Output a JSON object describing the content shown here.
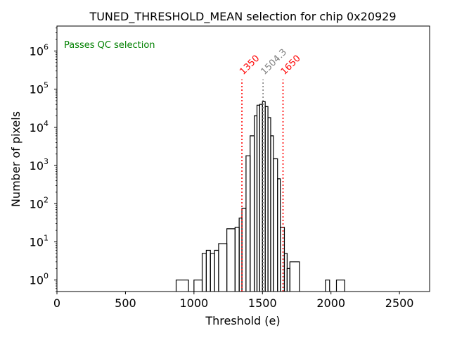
{
  "chart_data": {
    "type": "histogram",
    "title": "TUNED_THRESHOLD_MEAN selection for chip 0x20929",
    "xlabel": "Threshold (e)",
    "ylabel": "Number of pixels",
    "xlim": [
      0,
      2720
    ],
    "ylim_log": [
      0.5,
      4500000
    ],
    "yscale": "log",
    "x_ticks": [
      0,
      500,
      1000,
      1500,
      2000,
      2500
    ],
    "x_tick_labels": [
      "0",
      "500",
      "1000",
      "1500",
      "2000",
      "2500"
    ],
    "y_ticks": [
      1,
      10,
      100,
      1000,
      10000,
      100000,
      1000000
    ],
    "y_tick_base": "10",
    "y_tick_exponents": [
      "0",
      "1",
      "2",
      "3",
      "4",
      "5",
      "6"
    ],
    "bins": [
      {
        "x0": 870,
        "x1": 960,
        "count": 1
      },
      {
        "x0": 1000,
        "x1": 1060,
        "count": 1
      },
      {
        "x0": 1060,
        "x1": 1090,
        "count": 5
      },
      {
        "x0": 1090,
        "x1": 1120,
        "count": 6
      },
      {
        "x0": 1120,
        "x1": 1150,
        "count": 5
      },
      {
        "x0": 1150,
        "x1": 1180,
        "count": 6
      },
      {
        "x0": 1180,
        "x1": 1240,
        "count": 9
      },
      {
        "x0": 1240,
        "x1": 1300,
        "count": 22
      },
      {
        "x0": 1300,
        "x1": 1330,
        "count": 24
      },
      {
        "x0": 1330,
        "x1": 1350,
        "count": 42
      },
      {
        "x0": 1350,
        "x1": 1380,
        "count": 75
      },
      {
        "x0": 1380,
        "x1": 1410,
        "count": 1800
      },
      {
        "x0": 1410,
        "x1": 1440,
        "count": 6000
      },
      {
        "x0": 1440,
        "x1": 1460,
        "count": 20000
      },
      {
        "x0": 1460,
        "x1": 1480,
        "count": 38000
      },
      {
        "x0": 1480,
        "x1": 1500,
        "count": 40000
      },
      {
        "x0": 1500,
        "x1": 1520,
        "count": 47000
      },
      {
        "x0": 1520,
        "x1": 1540,
        "count": 35000
      },
      {
        "x0": 1540,
        "x1": 1560,
        "count": 18000
      },
      {
        "x0": 1560,
        "x1": 1580,
        "count": 6000
      },
      {
        "x0": 1580,
        "x1": 1610,
        "count": 1500
      },
      {
        "x0": 1610,
        "x1": 1630,
        "count": 450
      },
      {
        "x0": 1630,
        "x1": 1660,
        "count": 24
      },
      {
        "x0": 1660,
        "x1": 1680,
        "count": 5
      },
      {
        "x0": 1680,
        "x1": 1700,
        "count": 2
      },
      {
        "x0": 1700,
        "x1": 1770,
        "count": 3
      },
      {
        "x0": 1960,
        "x1": 1990,
        "count": 1
      },
      {
        "x0": 2040,
        "x1": 2100,
        "count": 1
      }
    ],
    "vertical_lines": [
      {
        "x": 1350,
        "label": "1350",
        "color": "#ff0000",
        "style": "dotted"
      },
      {
        "x": 1504.3,
        "label": "1504.3",
        "color": "#808080",
        "style": "dotted"
      },
      {
        "x": 1650,
        "label": "1650",
        "color": "#ff0000",
        "style": "dotted"
      }
    ],
    "annotation": {
      "text": "Passes QC selection",
      "color": "#008000",
      "position": "top-left"
    },
    "grid": false,
    "line_color": "#000000"
  }
}
